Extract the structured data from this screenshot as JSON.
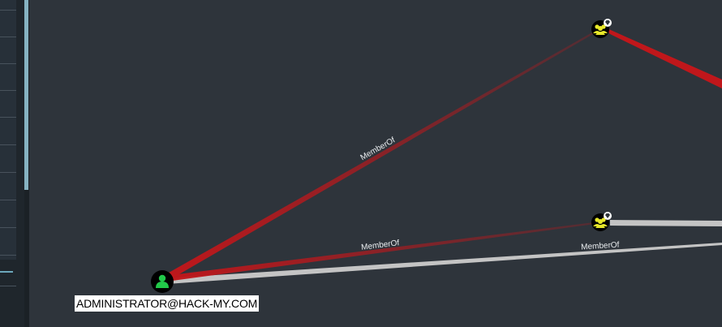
{
  "graph": {
    "background": "#2e343b",
    "edge_colors": {
      "red": "#c0171b",
      "grey": "#c4c4c4"
    },
    "nodes": [
      {
        "id": "user-admin",
        "type": "user",
        "label": "ADMINISTRATOR@HACK-MY.COM",
        "icon": "user-icon",
        "color": "#22c84a"
      },
      {
        "id": "group-top",
        "type": "group",
        "label": "",
        "icon": "group-icon",
        "badge": "gem-icon",
        "color": "#e8e82a"
      },
      {
        "id": "group-mid",
        "type": "group",
        "label": "",
        "icon": "group-icon",
        "badge": "gem-icon",
        "color": "#e8e82a"
      }
    ],
    "edges": [
      {
        "from": "user-admin",
        "to": "group-top",
        "label": "MemberOf",
        "color": "red"
      },
      {
        "from": "user-admin",
        "to": "group-mid",
        "label": "MemberOf",
        "color": "red"
      },
      {
        "from": "user-admin",
        "to": "offscreen-right",
        "label": "MemberOf",
        "color": "grey"
      },
      {
        "from": "group-top",
        "to": "offscreen-right",
        "label": "",
        "color": "red"
      },
      {
        "from": "group-mid",
        "to": "offscreen-right",
        "label": "",
        "color": "grey"
      }
    ]
  }
}
